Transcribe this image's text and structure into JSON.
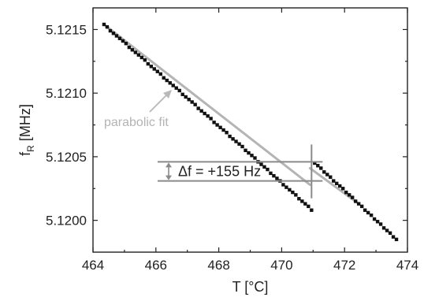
{
  "chart_data": {
    "type": "scatter",
    "xlabel": "T [°C]",
    "ylabel_main": "f",
    "ylabel_sub": "R",
    "ylabel_unit": " [MHz]",
    "xlim": [
      464,
      474
    ],
    "ylim": [
      5.11975,
      5.12167
    ],
    "xticks": [
      464,
      466,
      468,
      470,
      472,
      474
    ],
    "xtick_labels": [
      "464",
      "466",
      "468",
      "470",
      "472",
      "474"
    ],
    "yticks": [
      5.12,
      5.1205,
      5.121,
      5.1215
    ],
    "ytick_labels": [
      "5.1200",
      "5.1205",
      "5.1210",
      "5.1215"
    ],
    "series": [
      {
        "marker": "square",
        "color": "#111111",
        "x": [
          464.35,
          464.45,
          464.55,
          464.65,
          464.75,
          464.85,
          464.95,
          465.05,
          465.15,
          465.25,
          465.35,
          465.45,
          465.55,
          465.65,
          465.75,
          465.85,
          465.95,
          466.05,
          466.15,
          466.25,
          466.35,
          466.45,
          466.55,
          466.65,
          466.75,
          466.85,
          466.95,
          467.05,
          467.15,
          467.25,
          467.35,
          467.45,
          467.55,
          467.65,
          467.75,
          467.85,
          467.95,
          468.05,
          468.15,
          468.25,
          468.35,
          468.45,
          468.55,
          468.65,
          468.75,
          468.85,
          468.95,
          469.05,
          469.15,
          469.25,
          469.35,
          469.45,
          469.55,
          469.65,
          469.75,
          469.85,
          469.95,
          470.05,
          470.15,
          470.25,
          470.35,
          470.45,
          470.55,
          470.65,
          470.75,
          470.85,
          470.95,
          471.05,
          471.15,
          471.25,
          471.35,
          471.45,
          471.55,
          471.65,
          471.75,
          471.85,
          471.95,
          472.05,
          472.15,
          472.25,
          472.35,
          472.45,
          472.55,
          472.65,
          472.75,
          472.85,
          472.95,
          473.05,
          473.15,
          473.25,
          473.35,
          473.45,
          473.55,
          473.65
        ],
        "y": [
          5.12154,
          5.12152,
          5.12149,
          5.12147,
          5.12145,
          5.12143,
          5.12141,
          5.12139,
          5.12136,
          5.12134,
          5.12132,
          5.1213,
          5.12128,
          5.12126,
          5.12123,
          5.12121,
          5.12119,
          5.12117,
          5.12115,
          5.12112,
          5.1211,
          5.12108,
          5.12106,
          5.12104,
          5.12102,
          5.12099,
          5.12097,
          5.12095,
          5.12093,
          5.12091,
          5.12088,
          5.12086,
          5.12084,
          5.12082,
          5.1208,
          5.12077,
          5.12075,
          5.12073,
          5.12071,
          5.12069,
          5.12066,
          5.12064,
          5.12062,
          5.1206,
          5.12058,
          5.12055,
          5.12053,
          5.12051,
          5.12049,
          5.12046,
          5.12044,
          5.12042,
          5.1204,
          5.12037,
          5.12035,
          5.12033,
          5.12031,
          5.12028,
          5.12026,
          5.12024,
          5.12022,
          5.1202,
          5.12017,
          5.12015,
          5.12013,
          5.12011,
          5.12008,
          5.12045,
          5.12043,
          5.12041,
          5.12038,
          5.12036,
          5.12034,
          5.12031,
          5.12029,
          5.12027,
          5.12025,
          5.12022,
          5.1202,
          5.12018,
          5.12015,
          5.12013,
          5.12011,
          5.12008,
          5.12006,
          5.12004,
          5.12001,
          5.11999,
          5.11997,
          5.11994,
          5.11992,
          5.1199,
          5.11987,
          5.11985
        ]
      }
    ],
    "fit": {
      "label": "parabolic fit",
      "color": "#b4b4b4",
      "segments": [
        {
          "x": [
            464.4,
            470.9
          ],
          "y": [
            5.12153,
            5.12028
          ]
        },
        {
          "x": [
            470.9,
            472.45
          ],
          "y": [
            5.12041,
            5.12013
          ]
        }
      ]
    },
    "annotation": {
      "text": "Δf = +155 Hz",
      "x_jump": 470.95,
      "y_upper": 5.12046,
      "y_lower": 5.12031
    },
    "grid": false
  }
}
